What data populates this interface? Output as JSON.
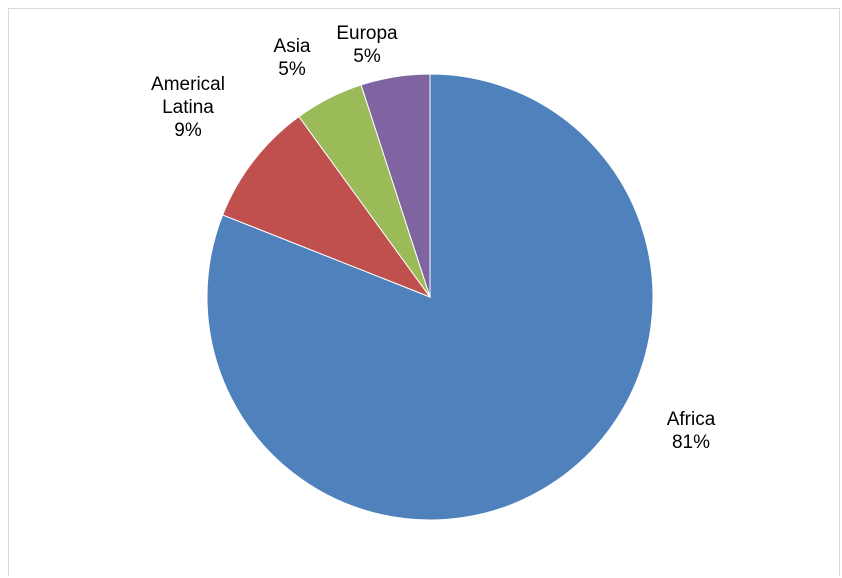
{
  "chart_data": {
    "type": "pie",
    "title": "",
    "categories": [
      "Africa",
      "Americal Latina",
      "Asia",
      "Europa"
    ],
    "values": [
      81,
      9,
      5,
      5
    ],
    "labels": [
      [
        "Africa",
        "81%"
      ],
      [
        "Americal",
        "Latina",
        "9%"
      ],
      [
        "Asia",
        "5%"
      ],
      [
        "Europa",
        "5%"
      ]
    ],
    "colors": [
      "#4f81bd",
      "#c0504d",
      "#9bbb59",
      "#8064a2"
    ],
    "start_angle_deg": 0,
    "direction": "clockwise",
    "legend": "none",
    "grid": false
  }
}
